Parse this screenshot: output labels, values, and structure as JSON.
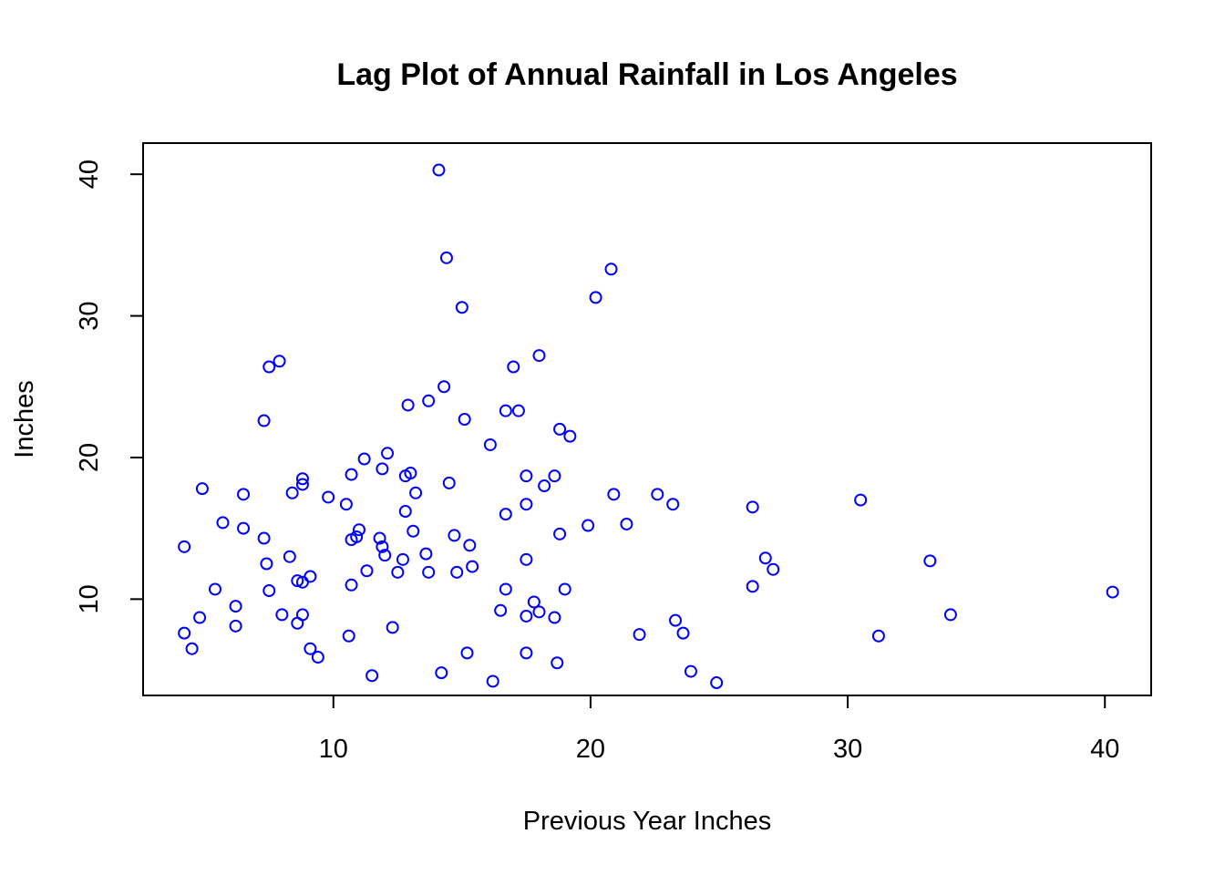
{
  "chart_data": {
    "type": "scatter",
    "title": "Lag Plot of Annual Rainfall in Los Angeles",
    "xlabel": "Previous Year Inches",
    "ylabel": "Inches",
    "xlim": [
      2.6,
      41.8
    ],
    "ylim": [
      3.2,
      42.2
    ],
    "xticks": [
      10,
      20,
      30,
      40
    ],
    "yticks": [
      10,
      20,
      30,
      40
    ],
    "xtick_labels": [
      "10",
      "20",
      "30",
      "40"
    ],
    "ytick_labels": [
      "10",
      "20",
      "30",
      "40"
    ],
    "grid": false,
    "marker": "open-circle",
    "point_color": "#0000ff",
    "points": [
      [
        14.1,
        40.3
      ],
      [
        14.4,
        34.1
      ],
      [
        20.8,
        33.3
      ],
      [
        20.2,
        31.3
      ],
      [
        15.0,
        30.6
      ],
      [
        7.9,
        26.8
      ],
      [
        7.5,
        26.4
      ],
      [
        18.0,
        27.2
      ],
      [
        17.0,
        26.4
      ],
      [
        14.3,
        25.0
      ],
      [
        13.7,
        24.0
      ],
      [
        12.9,
        23.7
      ],
      [
        16.7,
        23.3
      ],
      [
        17.2,
        23.3
      ],
      [
        7.3,
        22.6
      ],
      [
        15.1,
        22.7
      ],
      [
        18.8,
        22.0
      ],
      [
        19.2,
        21.5
      ],
      [
        16.1,
        20.9
      ],
      [
        12.1,
        20.3
      ],
      [
        11.2,
        19.9
      ],
      [
        11.9,
        19.2
      ],
      [
        10.7,
        18.8
      ],
      [
        12.8,
        18.7
      ],
      [
        13.0,
        18.9
      ],
      [
        8.8,
        18.5
      ],
      [
        8.8,
        18.1
      ],
      [
        17.5,
        18.7
      ],
      [
        18.6,
        18.7
      ],
      [
        14.5,
        18.2
      ],
      [
        18.2,
        18.0
      ],
      [
        4.9,
        17.8
      ],
      [
        8.4,
        17.5
      ],
      [
        6.5,
        17.4
      ],
      [
        13.2,
        17.5
      ],
      [
        9.8,
        17.2
      ],
      [
        20.9,
        17.4
      ],
      [
        22.6,
        17.4
      ],
      [
        30.5,
        17.0
      ],
      [
        10.5,
        16.7
      ],
      [
        17.5,
        16.7
      ],
      [
        23.2,
        16.7
      ],
      [
        26.3,
        16.5
      ],
      [
        12.8,
        16.2
      ],
      [
        16.7,
        16.0
      ],
      [
        5.7,
        15.4
      ],
      [
        6.5,
        15.0
      ],
      [
        11.0,
        14.9
      ],
      [
        21.4,
        15.3
      ],
      [
        19.9,
        15.2
      ],
      [
        13.1,
        14.8
      ],
      [
        10.7,
        14.2
      ],
      [
        10.9,
        14.4
      ],
      [
        11.8,
        14.3
      ],
      [
        14.7,
        14.5
      ],
      [
        18.8,
        14.6
      ],
      [
        7.3,
        14.3
      ],
      [
        11.9,
        13.7
      ],
      [
        12.0,
        13.1
      ],
      [
        15.3,
        13.8
      ],
      [
        4.2,
        13.7
      ],
      [
        8.3,
        13.0
      ],
      [
        13.6,
        13.2
      ],
      [
        12.7,
        12.8
      ],
      [
        17.5,
        12.8
      ],
      [
        26.8,
        12.9
      ],
      [
        33.2,
        12.7
      ],
      [
        7.4,
        12.5
      ],
      [
        15.4,
        12.3
      ],
      [
        27.1,
        12.1
      ],
      [
        11.3,
        12.0
      ],
      [
        12.5,
        11.9
      ],
      [
        13.7,
        11.9
      ],
      [
        14.8,
        11.9
      ],
      [
        9.1,
        11.6
      ],
      [
        8.6,
        11.3
      ],
      [
        8.8,
        11.2
      ],
      [
        10.7,
        11.0
      ],
      [
        26.3,
        10.9
      ],
      [
        5.4,
        10.7
      ],
      [
        7.5,
        10.6
      ],
      [
        16.7,
        10.7
      ],
      [
        19.0,
        10.7
      ],
      [
        40.3,
        10.5
      ],
      [
        6.2,
        9.5
      ],
      [
        8.0,
        8.9
      ],
      [
        8.8,
        8.9
      ],
      [
        16.5,
        9.2
      ],
      [
        18.0,
        9.1
      ],
      [
        17.8,
        9.8
      ],
      [
        17.5,
        8.8
      ],
      [
        18.6,
        8.7
      ],
      [
        34.0,
        8.9
      ],
      [
        4.8,
        8.7
      ],
      [
        8.6,
        8.3
      ],
      [
        23.3,
        8.5
      ],
      [
        6.2,
        8.1
      ],
      [
        12.3,
        8.0
      ],
      [
        4.2,
        7.6
      ],
      [
        10.6,
        7.4
      ],
      [
        21.9,
        7.5
      ],
      [
        23.6,
        7.6
      ],
      [
        31.2,
        7.4
      ],
      [
        4.5,
        6.5
      ],
      [
        9.1,
        6.5
      ],
      [
        9.4,
        5.9
      ],
      [
        15.2,
        6.2
      ],
      [
        17.5,
        6.2
      ],
      [
        18.7,
        5.5
      ],
      [
        14.2,
        4.8
      ],
      [
        11.5,
        4.6
      ],
      [
        16.2,
        4.2
      ],
      [
        23.9,
        4.9
      ],
      [
        24.9,
        4.1
      ]
    ]
  }
}
